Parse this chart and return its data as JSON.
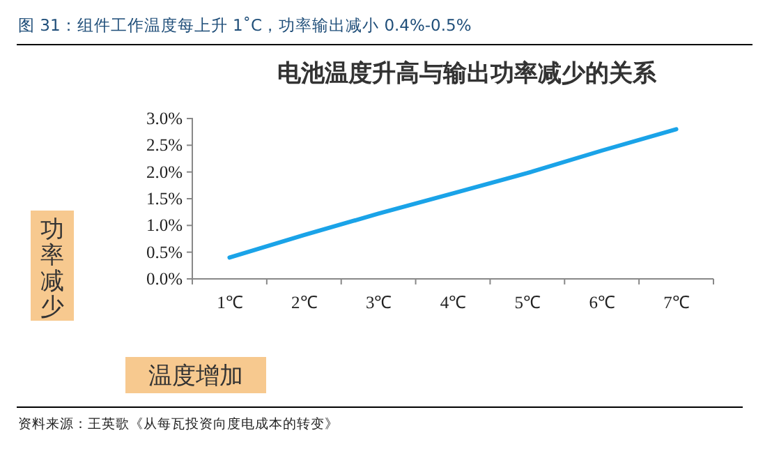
{
  "chart_data": {
    "type": "line",
    "subtitle": "图 31：组件工作温度每上升 1˚C，功率输出减小 0.4%-0.5%",
    "title": "电池温度升高与输出功率减少的关系",
    "ylabel": "功率减少",
    "xlabel": "温度增加",
    "annotations": [
      "资料来源：王英歌《从每瓦投资向度电成本的转变》"
    ],
    "categories": [
      "1℃",
      "2℃",
      "3℃",
      "4℃",
      "5℃",
      "6℃",
      "7℃"
    ],
    "series": [
      {
        "color": "#1aa3e8",
        "values": [
          0.4,
          0.82,
          1.22,
          1.6,
          1.98,
          2.4,
          2.8
        ]
      }
    ],
    "ylim": [
      0,
      3
    ],
    "yticks": [
      {
        "value": 0,
        "label": "0.0%"
      },
      {
        "value": 0.5,
        "label": "0.5%"
      },
      {
        "value": 1,
        "label": "1.0%"
      },
      {
        "value": 1.5,
        "label": "1.5%"
      },
      {
        "value": 2,
        "label": "2.0%"
      },
      {
        "value": 2.5,
        "label": "2.5%"
      },
      {
        "value": 3,
        "label": "3.0%"
      }
    ],
    "grid": false,
    "marker": "none",
    "line_style": "solid"
  }
}
